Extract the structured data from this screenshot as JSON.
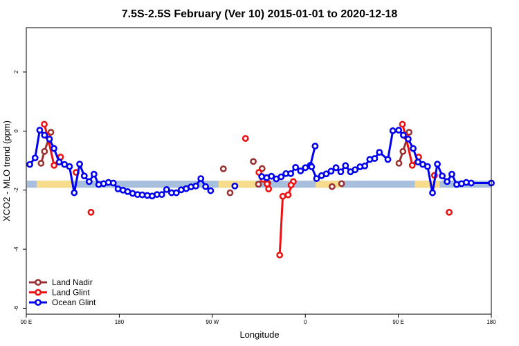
{
  "chart_data": {
    "type": "line",
    "title": "7.5S-2.5S February (Ver 10)   2015-01-01 to 2020-12-18",
    "xlabel": "Longitude",
    "ylabel": "XCO2 - MLO trend (ppm)",
    "x_ticks": [
      {
        "value": 0,
        "label": "90 E"
      },
      {
        "value": 90,
        "label": "180"
      },
      {
        "value": 180,
        "label": "90 W"
      },
      {
        "value": 270,
        "label": "0"
      },
      {
        "value": 360,
        "label": "90 E"
      },
      {
        "value": 450,
        "label": "180"
      }
    ],
    "y_ticks": [
      {
        "value": -6,
        "label": "-6"
      },
      {
        "value": -4,
        "label": "-4"
      },
      {
        "value": -2,
        "label": "-2"
      },
      {
        "value": 0,
        "label": "0"
      },
      {
        "value": 2,
        "label": "2"
      }
    ],
    "xlim": [
      0,
      450
    ],
    "ylim": [
      -6.2,
      3.5
    ],
    "grid": false,
    "legend_position": "bottom-left",
    "land_band": {
      "ymin": -1.92,
      "ymax": -1.68,
      "ocean_color": "#a8bedd",
      "land_color": "#f6dc8c",
      "land_segments": [
        [
          10,
          45
        ],
        [
          186,
          222
        ],
        [
          280,
          305
        ],
        [
          376,
          400
        ]
      ]
    },
    "series": [
      {
        "name": "Land Nadir",
        "color": "#9b3232",
        "segments": [
          [
            [
              14.3,
              -1.09
            ],
            [
              17.6,
              -0.69
            ],
            [
              23.8,
              -0.04
            ]
          ],
          [
            [
              360.6,
              -1.09
            ],
            [
              364.5,
              -0.69
            ],
            [
              370.4,
              -0.04
            ]
          ]
        ],
        "points": [
          [
            190.7,
            -1.28
          ],
          [
            197.2,
            -2.09
          ],
          [
            219.7,
            -1.03
          ],
          [
            224.7,
            -1.8
          ],
          [
            228.2,
            -1.27
          ],
          [
            233.8,
            -1.76
          ],
          [
            295.9,
            -1.88
          ],
          [
            305.1,
            -1.78
          ]
        ]
      },
      {
        "name": "Land Glint",
        "color": "#ee1111",
        "segments": [
          [
            [
              17.4,
              0.23
            ],
            [
              20.6,
              -0.18
            ],
            [
              26.9,
              -1.16
            ],
            [
              33.2,
              -0.88
            ]
          ],
          [
            [
              245.2,
              -4.2
            ],
            [
              248.2,
              -2.21
            ],
            [
              253.4,
              -2.16
            ],
            [
              258.4,
              -1.71
            ]
          ],
          [
            [
              364.0,
              0.23
            ],
            [
              367.2,
              -0.18
            ],
            [
              373.5,
              -1.16
            ],
            [
              379.7,
              -0.88
            ]
          ]
        ],
        "points": [
          [
            48.2,
            -1.4
          ],
          [
            62.6,
            -2.75
          ],
          [
            212.1,
            -0.25
          ],
          [
            225.1,
            -1.4
          ],
          [
            229.1,
            -1.63
          ],
          [
            233.0,
            -1.79
          ],
          [
            234.5,
            -1.96
          ],
          [
            256.2,
            -1.83
          ],
          [
            409.2,
            -2.75
          ],
          [
            395.0,
            -1.5
          ]
        ]
      },
      {
        "name": "Ocean Glint",
        "color": "#0000ee",
        "segments": [
          [
            [
              3.4,
              -1.13
            ],
            [
              8.5,
              -0.91
            ],
            [
              13.0,
              0.03
            ],
            [
              17.6,
              -0.14
            ],
            [
              22.4,
              -0.27
            ],
            [
              26.8,
              -0.59
            ],
            [
              31.9,
              -1.05
            ],
            [
              37.0,
              -1.13
            ],
            [
              41.8,
              -1.2
            ],
            [
              46.4,
              -2.09
            ],
            [
              51.6,
              -1.12
            ],
            [
              56.1,
              -1.52
            ],
            [
              60.8,
              -1.71
            ],
            [
              65.5,
              -1.46
            ],
            [
              70.1,
              -1.81
            ],
            [
              74.9,
              -1.78
            ],
            [
              79.5,
              -1.74
            ],
            [
              84.2,
              -1.76
            ],
            [
              88.8,
              -1.96
            ],
            [
              93.5,
              -2.0
            ],
            [
              98.1,
              -2.05
            ],
            [
              102.9,
              -2.11
            ],
            [
              107.7,
              -2.15
            ],
            [
              112.2,
              -2.16
            ],
            [
              117.1,
              -2.18
            ],
            [
              121.8,
              -2.2
            ],
            [
              126.5,
              -2.15
            ],
            [
              131.1,
              -2.15
            ],
            [
              135.8,
              -1.98
            ],
            [
              140.6,
              -2.09
            ],
            [
              145.2,
              -2.09
            ],
            [
              149.9,
              -1.99
            ],
            [
              154.7,
              -1.95
            ],
            [
              159.4,
              -1.89
            ],
            [
              164.1,
              -1.86
            ],
            [
              168.9,
              -1.61
            ],
            [
              173.5,
              -1.88
            ],
            [
              178.4,
              -2.02
            ]
          ],
          [
            [
              227.8,
              -1.54
            ],
            [
              232.6,
              -1.58
            ],
            [
              237.2,
              -1.53
            ],
            [
              241.9,
              -1.62
            ],
            [
              246.6,
              -1.55
            ],
            [
              251.3,
              -1.44
            ],
            [
              255.9,
              -1.44
            ],
            [
              260.6,
              -1.23
            ],
            [
              265.4,
              -1.35
            ],
            [
              270.1,
              -1.24
            ],
            [
              274.9,
              -1.16
            ],
            [
              279.5,
              -0.51
            ]
          ],
          [
            [
              276.1,
              -1.21
            ],
            [
              280.9,
              -1.61
            ],
            [
              285.7,
              -1.51
            ],
            [
              290.3,
              -1.45
            ],
            [
              294.9,
              -1.36
            ],
            [
              299.7,
              -1.24
            ],
            [
              304.3,
              -1.38
            ],
            [
              308.9,
              -1.17
            ],
            [
              313.7,
              -1.38
            ],
            [
              318.2,
              -1.31
            ],
            [
              323.0,
              -1.21
            ],
            [
              327.6,
              -1.18
            ],
            [
              332.4,
              -0.96
            ],
            [
              337.1,
              -0.93
            ],
            [
              341.7,
              -0.72
            ],
            [
              349.9,
              -0.96
            ],
            [
              354.7,
              0.01
            ]
          ],
          [
            [
              360.4,
              0.03
            ],
            [
              364.9,
              -0.14
            ],
            [
              369.6,
              -0.27
            ],
            [
              374.4,
              -0.59
            ],
            [
              379.1,
              -1.05
            ],
            [
              383.7,
              -1.13
            ],
            [
              388.3,
              -1.2
            ],
            [
              393.1,
              -2.09
            ],
            [
              397.8,
              -1.12
            ],
            [
              402.5,
              -1.52
            ],
            [
              407.2,
              -1.71
            ],
            [
              411.8,
              -1.46
            ],
            [
              416.5,
              -1.81
            ],
            [
              421.2,
              -1.78
            ],
            [
              425.8,
              -1.74
            ],
            [
              430.5,
              -1.76
            ],
            [
              450.0,
              -1.76
            ]
          ]
        ],
        "points": [
          [
            201.8,
            -1.86
          ]
        ]
      }
    ]
  }
}
